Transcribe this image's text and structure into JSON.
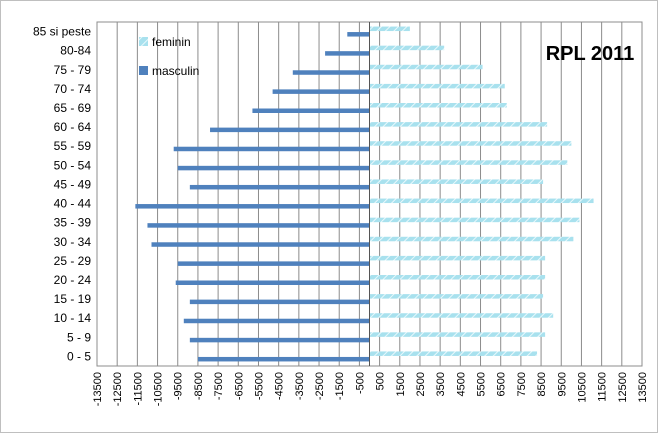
{
  "chart_data": {
    "type": "bar",
    "orientation": "horizontal",
    "title": "RPL 2011",
    "categories": [
      "0 - 5",
      "5 - 9",
      "10 - 14",
      "15 - 19",
      "20 - 24",
      "25 - 29",
      "30 - 34",
      "35 - 39",
      "40 - 44",
      "45 - 49",
      "50 - 54",
      "55 - 59",
      "60 - 64",
      "65 - 69",
      "70 - 74",
      "75 - 79",
      "80-84",
      "85 si peste"
    ],
    "series": [
      {
        "name": "feminin",
        "values": [
          8300,
          8700,
          9100,
          8600,
          8700,
          8700,
          10100,
          10400,
          11100,
          8600,
          9800,
          10000,
          8800,
          6800,
          6700,
          5600,
          3700,
          2000
        ],
        "color": "#7fd3e6"
      },
      {
        "name": "masculin",
        "values": [
          -8500,
          -8900,
          -9200,
          -8900,
          -9600,
          -9500,
          -10800,
          -11000,
          -11600,
          -8900,
          -9500,
          -9700,
          -7900,
          -5800,
          -4800,
          -3800,
          -2200,
          -1100
        ],
        "color": "#4f81bd"
      }
    ],
    "xlim": [
      -13500,
      13500
    ],
    "x_ticks": [
      -13500,
      -12500,
      -11500,
      -10500,
      -9500,
      -8500,
      -7500,
      -6500,
      -5500,
      -4500,
      -3500,
      -2500,
      -1500,
      -500,
      500,
      1500,
      2500,
      3500,
      4500,
      5500,
      6500,
      7500,
      8500,
      9500,
      10500,
      11500,
      12500,
      13500
    ],
    "grid": true,
    "legend_position": "top-left"
  }
}
